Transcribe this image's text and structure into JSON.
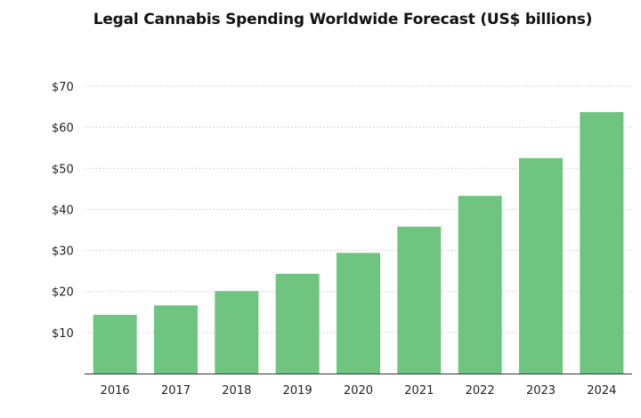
{
  "chart_data": {
    "type": "bar",
    "title": "Legal Cannabis Spending Worldwide Forecast (US$ billions)",
    "xlabel": "",
    "ylabel": "",
    "categories": [
      "2016",
      "2017",
      "2018",
      "2019",
      "2020",
      "2021",
      "2022",
      "2023",
      "2024"
    ],
    "values": [
      14.3,
      16.6,
      20.1,
      24.3,
      29.4,
      35.8,
      43.3,
      52.5,
      63.7
    ],
    "ylim": [
      0,
      70
    ],
    "yticks": [
      10,
      20,
      30,
      40,
      50,
      60,
      70
    ],
    "ytick_labels": [
      "$10",
      "$20",
      "$30",
      "$40",
      "$50",
      "$60",
      "$70"
    ],
    "bar_color": "#6fc47f",
    "grid": true,
    "legend": "none"
  }
}
